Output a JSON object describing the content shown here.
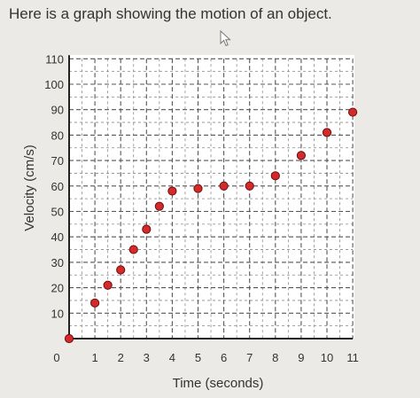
{
  "prompt_text": "Here is a graph showing the motion of an object.",
  "chart_data": {
    "type": "scatter",
    "title": "",
    "xlabel": "Time (seconds)",
    "ylabel": "Velocity (cm/s)",
    "xlim": [
      0,
      11
    ],
    "ylim": [
      0,
      110
    ],
    "x_ticks": [
      0,
      1,
      2,
      3,
      4,
      5,
      6,
      7,
      8,
      9,
      10,
      11
    ],
    "y_ticks": [
      10,
      20,
      30,
      40,
      50,
      60,
      70,
      80,
      90,
      100,
      110
    ],
    "grid": true,
    "point_color": "#d42a2a",
    "points": [
      {
        "x": 0,
        "y": 0
      },
      {
        "x": 1,
        "y": 14
      },
      {
        "x": 1.5,
        "y": 21
      },
      {
        "x": 2,
        "y": 27
      },
      {
        "x": 2.5,
        "y": 35
      },
      {
        "x": 3,
        "y": 43
      },
      {
        "x": 3.5,
        "y": 52
      },
      {
        "x": 4,
        "y": 58
      },
      {
        "x": 5,
        "y": 59
      },
      {
        "x": 6,
        "y": 60
      },
      {
        "x": 7,
        "y": 60
      },
      {
        "x": 8,
        "y": 64
      },
      {
        "x": 9,
        "y": 72
      },
      {
        "x": 10,
        "y": 81
      },
      {
        "x": 11,
        "y": 89
      }
    ]
  }
}
